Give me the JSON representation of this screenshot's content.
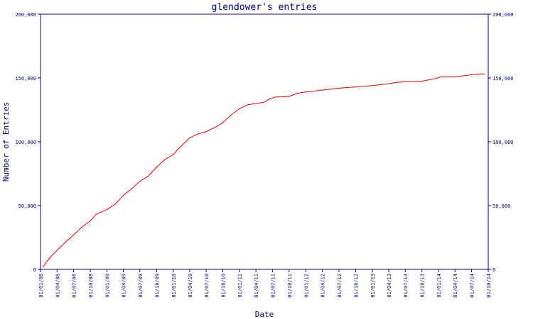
{
  "chart_data": {
    "type": "line",
    "title": "glendower's entries",
    "xlabel": "Date",
    "ylabel": "Number of Entries",
    "ylim": [
      0,
      200000
    ],
    "xlim": [
      "2008-01-01",
      "2014-10-01"
    ],
    "grid": false,
    "y_ticks": [
      {
        "value": 0,
        "label": "0"
      },
      {
        "value": 50000,
        "label": "50,000"
      },
      {
        "value": 100000,
        "label": "100,000"
      },
      {
        "value": 150000,
        "label": "150,000"
      },
      {
        "value": 200000,
        "label": "200,000"
      }
    ],
    "x_ticks": [
      {
        "date": "2008-01-01",
        "label": "01/01/08"
      },
      {
        "date": "2008-04-01",
        "label": "01/04/08"
      },
      {
        "date": "2008-07-01",
        "label": "01/07/08"
      },
      {
        "date": "2008-10-01",
        "label": "01/10/08"
      },
      {
        "date": "2009-01-01",
        "label": "01/01/09"
      },
      {
        "date": "2009-04-01",
        "label": "01/04/09"
      },
      {
        "date": "2009-07-01",
        "label": "01/07/09"
      },
      {
        "date": "2009-10-01",
        "label": "01/10/09"
      },
      {
        "date": "2010-01-01",
        "label": "01/01/10"
      },
      {
        "date": "2010-04-01",
        "label": "01/04/10"
      },
      {
        "date": "2010-07-01",
        "label": "01/07/10"
      },
      {
        "date": "2010-10-01",
        "label": "01/10/10"
      },
      {
        "date": "2011-01-01",
        "label": "01/01/11"
      },
      {
        "date": "2011-04-01",
        "label": "01/04/11"
      },
      {
        "date": "2011-07-01",
        "label": "01/07/11"
      },
      {
        "date": "2011-10-01",
        "label": "01/10/11"
      },
      {
        "date": "2012-01-01",
        "label": "01/01/12"
      },
      {
        "date": "2012-04-01",
        "label": "01/04/12"
      },
      {
        "date": "2012-07-01",
        "label": "01/07/12"
      },
      {
        "date": "2012-10-01",
        "label": "01/10/12"
      },
      {
        "date": "2013-01-01",
        "label": "01/01/13"
      },
      {
        "date": "2013-04-01",
        "label": "01/04/13"
      },
      {
        "date": "2013-07-01",
        "label": "01/07/13"
      },
      {
        "date": "2013-10-01",
        "label": "01/10/13"
      },
      {
        "date": "2014-01-01",
        "label": "01/01/14"
      },
      {
        "date": "2014-04-01",
        "label": "01/04/14"
      },
      {
        "date": "2014-07-01",
        "label": "01/07/14"
      },
      {
        "date": "2014-10-01",
        "label": "01/10/14"
      }
    ],
    "series": [
      {
        "color": "#ff0000",
        "points": [
          {
            "x": "2008-01-15",
            "y": 2000
          },
          {
            "x": "2008-02-15",
            "y": 8000
          },
          {
            "x": "2008-04-01",
            "y": 15000
          },
          {
            "x": "2008-05-15",
            "y": 21000
          },
          {
            "x": "2008-07-01",
            "y": 27000
          },
          {
            "x": "2008-08-15",
            "y": 33000
          },
          {
            "x": "2008-10-01",
            "y": 38000
          },
          {
            "x": "2008-11-01",
            "y": 43000
          },
          {
            "x": "2009-01-01",
            "y": 47000
          },
          {
            "x": "2009-02-15",
            "y": 51000
          },
          {
            "x": "2009-04-01",
            "y": 58000
          },
          {
            "x": "2009-05-15",
            "y": 63000
          },
          {
            "x": "2009-07-01",
            "y": 69000
          },
          {
            "x": "2009-08-15",
            "y": 73000
          },
          {
            "x": "2009-10-01",
            "y": 80000
          },
          {
            "x": "2009-11-15",
            "y": 86000
          },
          {
            "x": "2010-01-01",
            "y": 90000
          },
          {
            "x": "2010-02-01",
            "y": 95000
          },
          {
            "x": "2010-04-01",
            "y": 103000
          },
          {
            "x": "2010-05-15",
            "y": 106000
          },
          {
            "x": "2010-07-01",
            "y": 108000
          },
          {
            "x": "2010-08-15",
            "y": 111000
          },
          {
            "x": "2010-10-01",
            "y": 115000
          },
          {
            "x": "2010-11-15",
            "y": 121000
          },
          {
            "x": "2011-01-01",
            "y": 126000
          },
          {
            "x": "2011-02-15",
            "y": 129000
          },
          {
            "x": "2011-04-01",
            "y": 130000
          },
          {
            "x": "2011-05-15",
            "y": 131000
          },
          {
            "x": "2011-06-15",
            "y": 133500
          },
          {
            "x": "2011-07-15",
            "y": 135000
          },
          {
            "x": "2011-10-01",
            "y": 135500
          },
          {
            "x": "2011-11-15",
            "y": 138000
          },
          {
            "x": "2012-01-01",
            "y": 139000
          },
          {
            "x": "2012-04-01",
            "y": 140500
          },
          {
            "x": "2012-07-01",
            "y": 142000
          },
          {
            "x": "2012-10-01",
            "y": 143000
          },
          {
            "x": "2013-01-01",
            "y": 144000
          },
          {
            "x": "2013-04-01",
            "y": 145500
          },
          {
            "x": "2013-05-15",
            "y": 146500
          },
          {
            "x": "2013-07-01",
            "y": 147000
          },
          {
            "x": "2013-10-01",
            "y": 147500
          },
          {
            "x": "2013-12-15",
            "y": 149500
          },
          {
            "x": "2014-01-15",
            "y": 151000
          },
          {
            "x": "2014-04-01",
            "y": 151000
          },
          {
            "x": "2014-07-01",
            "y": 152500
          },
          {
            "x": "2014-08-15",
            "y": 153200
          },
          {
            "x": "2014-09-10",
            "y": 153200
          }
        ]
      }
    ]
  }
}
